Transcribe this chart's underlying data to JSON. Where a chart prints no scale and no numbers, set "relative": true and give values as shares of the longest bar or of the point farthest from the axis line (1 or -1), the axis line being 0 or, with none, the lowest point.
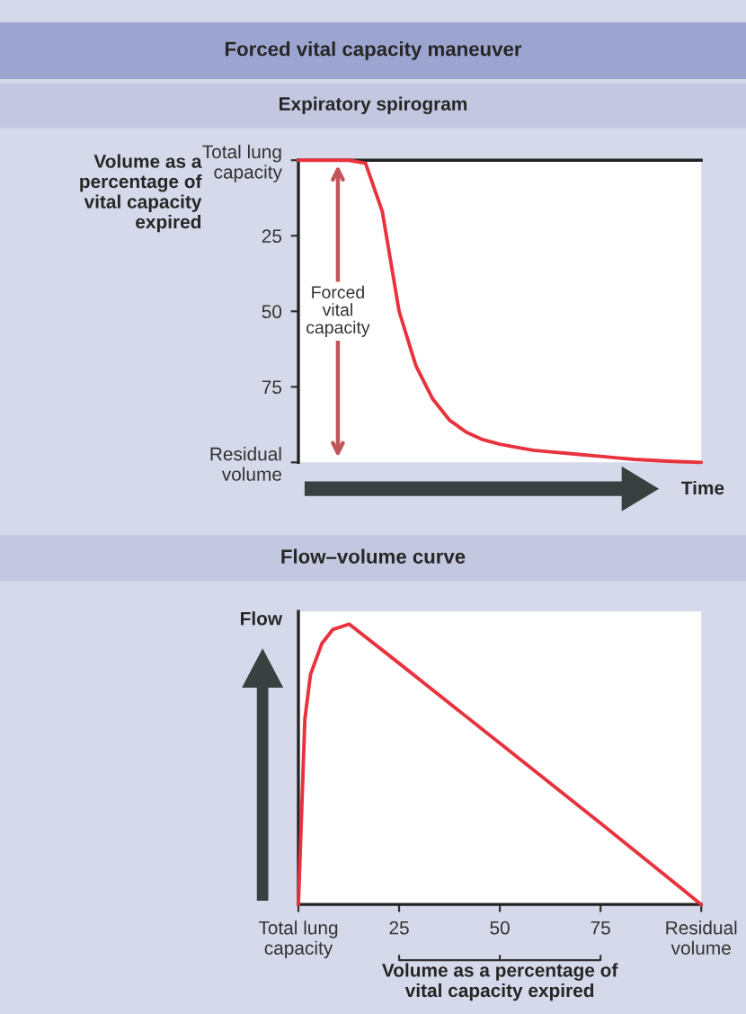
{
  "chart_data": [
    {
      "type": "line",
      "title": "Forced vital capacity maneuver",
      "subtitle": "Expiratory spirogram",
      "ylabel": "Volume as a percentage of vital capacity expired",
      "xlabel": "Time",
      "categories": [
        null,
        null,
        null,
        null,
        null,
        null,
        null,
        null,
        null,
        null,
        null,
        null,
        null,
        null,
        null,
        null,
        null,
        null,
        null,
        null,
        null,
        null,
        null,
        null,
        null
      ],
      "series": [
        {
          "color": "#e8333f",
          "values": [
            0,
            0,
            0,
            0,
            1,
            17,
            50,
            68,
            79,
            86,
            90,
            92.5,
            94,
            95,
            96,
            96.5,
            97,
            97.5,
            98,
            98.5,
            99,
            99.3,
            99.6,
            99.8,
            100
          ]
        }
      ],
      "ylim": [
        100,
        0
      ],
      "yticks": [
        {
          "value": 0,
          "label": "Total lung capacity"
        },
        25,
        50,
        75,
        {
          "value": 100,
          "label": "Residual volume"
        }
      ],
      "tick_labels": "y",
      "annotations": [
        "Forced vital capacity"
      ]
    },
    {
      "type": "line",
      "title": "Flow–volume curve",
      "ylabel": "Flow",
      "xlabel": "Volume as a percentage of vital capacity expired",
      "relative": true,
      "x": [
        0,
        1,
        1.6,
        3,
        5.8,
        8.5,
        12.6,
        25,
        50,
        75,
        100
      ],
      "series": [
        {
          "color": "#e8333f",
          "values": [
            0,
            0.41,
            0.66,
            0.82,
            0.93,
            0.98,
            1,
            0.86,
            0.575,
            0.29,
            0
          ]
        }
      ],
      "xlim": [
        0,
        100
      ],
      "xticks": [
        {
          "value": 0,
          "label": "Total lung capacity"
        },
        25,
        50,
        75,
        {
          "value": 100,
          "label": "Residual volume"
        }
      ],
      "tick_labels": "x"
    }
  ]
}
